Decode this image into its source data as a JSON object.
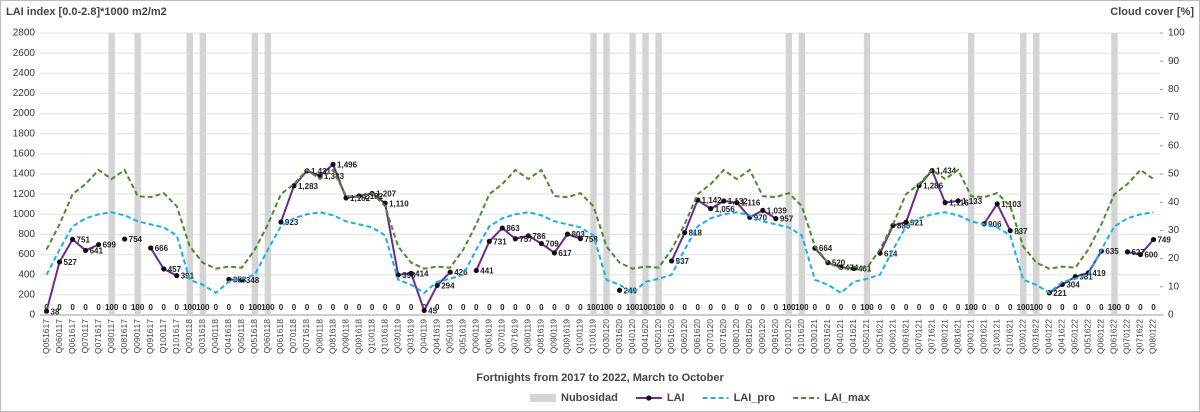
{
  "chart_data": {
    "type": "line",
    "title": "LAI index [0.0-2.8]*1000 m2/m2",
    "y2_title": "Cloud cover [%]",
    "x_label": "Fortnights from 2017 to 2022, March to October",
    "categories": [
      "Q051617",
      "Q060117",
      "Q061617",
      "Q070117",
      "Q071617",
      "Q080117",
      "Q081617",
      "Q090117",
      "Q091617",
      "Q100117",
      "Q101617",
      "Q030118",
      "Q031618",
      "Q040118",
      "Q041618",
      "Q050118",
      "Q051618",
      "Q060118",
      "Q061618",
      "Q070118",
      "Q071618",
      "Q080118",
      "Q081618",
      "Q090118",
      "Q091618",
      "Q100118",
      "Q101618",
      "Q030119",
      "Q031619",
      "Q040119",
      "Q041619",
      "Q050119",
      "Q051619",
      "Q060119",
      "Q061619",
      "Q070119",
      "Q071619",
      "Q080119",
      "Q081619",
      "Q090119",
      "Q091619",
      "Q100119",
      "Q101619",
      "Q030120",
      "Q031620",
      "Q040120",
      "Q041620",
      "Q050120",
      "Q051620",
      "Q060120",
      "Q061620",
      "Q070120",
      "Q071620",
      "Q080120",
      "Q081620",
      "Q090120",
      "Q091620",
      "Q100120",
      "Q101620",
      "Q030121",
      "Q031621",
      "Q040121",
      "Q041621",
      "Q050121",
      "Q051621",
      "Q060121",
      "Q061621",
      "Q070121",
      "Q071621",
      "Q080121",
      "Q081621",
      "Q090121",
      "Q091621",
      "Q100121",
      "Q101621",
      "Q030122",
      "Q031622",
      "Q040122",
      "Q041622",
      "Q050122",
      "Q051622",
      "Q060122",
      "Q061622",
      "Q070122",
      "Q071622",
      "Q080122"
    ],
    "series": [
      {
        "name": "Nubosidad",
        "type": "bar",
        "axis": "y2",
        "color": "#d4d4d4",
        "values": [
          0,
          0,
          0,
          0,
          0,
          100,
          0,
          100,
          0,
          0,
          0,
          100,
          100,
          0,
          0,
          0,
          100,
          100,
          0,
          0,
          0,
          0,
          0,
          0,
          0,
          0,
          0,
          0,
          0,
          0,
          0,
          0,
          0,
          0,
          0,
          0,
          0,
          0,
          0,
          0,
          0,
          0,
          100,
          100,
          0,
          100,
          100,
          100,
          0,
          0,
          0,
          0,
          0,
          0,
          0,
          0,
          0,
          100,
          100,
          0,
          0,
          0,
          0,
          100,
          0,
          0,
          0,
          0,
          0,
          0,
          0,
          100,
          0,
          0,
          0,
          100,
          100,
          0,
          0,
          0,
          0,
          0,
          100,
          0,
          0,
          0
        ]
      },
      {
        "name": "LAI",
        "type": "line",
        "color": "#6a2c91",
        "marker": "#111111",
        "values": [
          38,
          527,
          751,
          641,
          699,
          null,
          754,
          null,
          666,
          457,
          391,
          null,
          null,
          null,
          353,
          348,
          null,
          null,
          923,
          1283,
          1431,
          1383,
          1496,
          1162,
          1182,
          1207,
          1110,
          398,
          414,
          45,
          294,
          426,
          null,
          441,
          731,
          863,
          757,
          786,
          709,
          617,
          803,
          758,
          null,
          null,
          246,
          null,
          null,
          null,
          537,
          818,
          1142,
          1056,
          1132,
          1116,
          970,
          1039,
          957,
          null,
          null,
          664,
          520,
          474,
          461,
          null,
          614,
          889,
          921,
          1286,
          1434,
          1116,
          1133,
          null,
          906,
          1103,
          837,
          null,
          null,
          221,
          304,
          381,
          419,
          635,
          null,
          627,
          600,
          749
        ],
        "value_labels": [
          "38",
          "527",
          "751",
          "641",
          "699",
          null,
          "754",
          null,
          "666",
          "457",
          "391",
          null,
          null,
          null,
          "353",
          "348",
          null,
          null,
          "923",
          "1,283",
          "1,431",
          "1,383",
          "1,496",
          "1,162",
          "1,182",
          "1,207",
          "1,110",
          "398",
          "414",
          "45",
          "294",
          "426",
          null,
          "441",
          "731",
          "863",
          "757",
          "786",
          "709",
          "617",
          "803",
          "758",
          null,
          null,
          "246",
          null,
          null,
          null,
          "537",
          "818",
          "1,142",
          "1,056",
          "1,132",
          "1,116",
          "970",
          "1,039",
          "957",
          null,
          null,
          "664",
          "520",
          "474",
          "461",
          null,
          "614",
          "889",
          "921",
          "1,286",
          "1,434",
          "1,116",
          "1,133",
          null,
          "906",
          "1,103",
          "837",
          null,
          null,
          "221",
          "304",
          "381",
          "419",
          "635",
          null,
          "627",
          "600",
          "749"
        ]
      },
      {
        "name": "LAI_pro",
        "type": "line",
        "dash": true,
        "color": "#1cb0e6",
        "values": [
          400,
          650,
          880,
          960,
          1000,
          1020,
          990,
          930,
          900,
          870,
          790,
          350,
          300,
          220,
          330,
          360,
          400,
          650,
          880,
          960,
          1000,
          1020,
          990,
          930,
          900,
          870,
          790,
          350,
          300,
          220,
          330,
          360,
          400,
          650,
          880,
          960,
          1000,
          1020,
          990,
          930,
          900,
          870,
          790,
          350,
          300,
          220,
          330,
          360,
          400,
          650,
          880,
          960,
          1000,
          1020,
          990,
          930,
          900,
          870,
          790,
          350,
          300,
          220,
          330,
          360,
          400,
          650,
          880,
          960,
          1000,
          1020,
          990,
          930,
          900,
          870,
          790,
          350,
          300,
          220,
          330,
          360,
          400,
          650,
          880,
          960,
          1000,
          1020
        ]
      },
      {
        "name": "LAI_max",
        "type": "line",
        "dash": true,
        "color": "#4e8a2e",
        "values": [
          650,
          900,
          1200,
          1300,
          1440,
          1350,
          1440,
          1180,
          1170,
          1210,
          1080,
          680,
          520,
          460,
          480,
          470,
          650,
          900,
          1200,
          1300,
          1440,
          1350,
          1440,
          1180,
          1170,
          1210,
          1080,
          680,
          520,
          460,
          480,
          470,
          650,
          900,
          1200,
          1300,
          1440,
          1350,
          1440,
          1180,
          1170,
          1210,
          1080,
          680,
          520,
          460,
          480,
          470,
          650,
          900,
          1200,
          1300,
          1440,
          1350,
          1440,
          1180,
          1170,
          1210,
          1080,
          680,
          520,
          460,
          480,
          470,
          650,
          900,
          1200,
          1300,
          1440,
          1350,
          1440,
          1180,
          1170,
          1210,
          1080,
          680,
          520,
          460,
          480,
          470,
          650,
          900,
          1200,
          1300,
          1440,
          1350
        ]
      }
    ],
    "ylim": [
      0,
      2800
    ],
    "yticks": [
      0,
      200,
      400,
      600,
      800,
      1000,
      1200,
      1400,
      1600,
      1800,
      2000,
      2200,
      2400,
      2600,
      2800
    ],
    "y2lim": [
      0,
      100
    ],
    "y2ticks": [
      0,
      10,
      20,
      30,
      40,
      50,
      60,
      70,
      80,
      90,
      100
    ],
    "grid": true,
    "legend": "bottom"
  }
}
